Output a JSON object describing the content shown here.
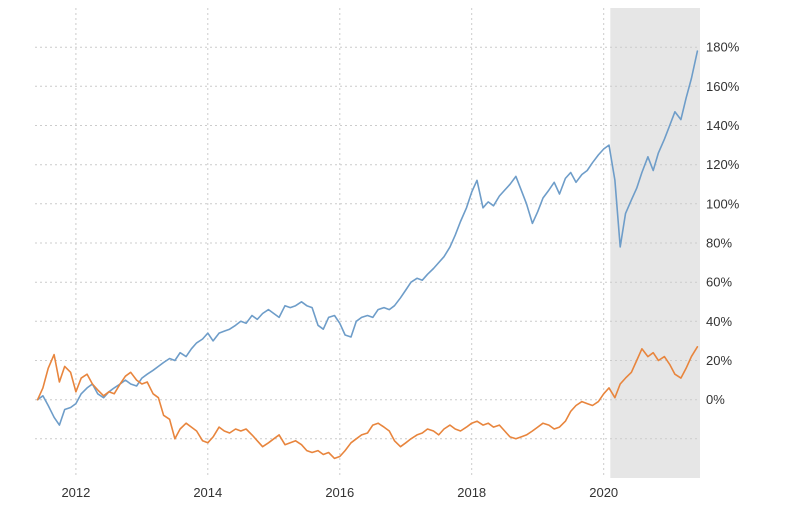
{
  "page": {
    "background": "#ffffff"
  },
  "chart_data": {
    "type": "line",
    "title": "",
    "xlabel": "",
    "ylabel": "",
    "legend": "none",
    "grid": "dashed",
    "grid_color": "#cccccc",
    "xlim": [
      2011.38,
      2021.46
    ],
    "ylim": [
      -40,
      200
    ],
    "y_gridlines": [
      -20,
      0,
      20,
      40,
      60,
      80,
      100,
      120,
      140,
      160,
      180
    ],
    "y_ticks": [
      {
        "value": 0,
        "label": "0%"
      },
      {
        "value": 20,
        "label": "20%"
      },
      {
        "value": 40,
        "label": "40%"
      },
      {
        "value": 60,
        "label": "60%"
      },
      {
        "value": 80,
        "label": "80%"
      },
      {
        "value": 100,
        "label": "100%"
      },
      {
        "value": 120,
        "label": "120%"
      },
      {
        "value": 140,
        "label": "140%"
      },
      {
        "value": 160,
        "label": "160%"
      },
      {
        "value": 180,
        "label": "180%"
      }
    ],
    "x_ticks": [
      {
        "value": 2012,
        "label": "2012"
      },
      {
        "value": 2014,
        "label": "2014"
      },
      {
        "value": 2016,
        "label": "2016"
      },
      {
        "value": 2018,
        "label": "2018"
      },
      {
        "value": 2020,
        "label": "2020"
      }
    ],
    "recession_band": {
      "x_from": 2020.1,
      "x_to": 2021.46,
      "color": "#e6e6e6"
    },
    "x": [
      2011.42,
      2011.5,
      2011.58,
      2011.67,
      2011.75,
      2011.83,
      2011.92,
      2012.0,
      2012.08,
      2012.17,
      2012.25,
      2012.33,
      2012.42,
      2012.5,
      2012.58,
      2012.67,
      2012.75,
      2012.83,
      2012.92,
      2013.0,
      2013.08,
      2013.17,
      2013.25,
      2013.33,
      2013.42,
      2013.5,
      2013.58,
      2013.67,
      2013.75,
      2013.83,
      2013.92,
      2014.0,
      2014.08,
      2014.17,
      2014.25,
      2014.33,
      2014.42,
      2014.5,
      2014.58,
      2014.67,
      2014.75,
      2014.83,
      2014.92,
      2015.0,
      2015.08,
      2015.17,
      2015.25,
      2015.33,
      2015.42,
      2015.5,
      2015.58,
      2015.67,
      2015.75,
      2015.83,
      2015.92,
      2016.0,
      2016.08,
      2016.17,
      2016.25,
      2016.33,
      2016.42,
      2016.5,
      2016.58,
      2016.67,
      2016.75,
      2016.83,
      2016.92,
      2017.0,
      2017.08,
      2017.17,
      2017.25,
      2017.33,
      2017.42,
      2017.5,
      2017.58,
      2017.67,
      2017.75,
      2017.83,
      2017.92,
      2018.0,
      2018.08,
      2018.17,
      2018.25,
      2018.33,
      2018.42,
      2018.5,
      2018.58,
      2018.67,
      2018.75,
      2018.83,
      2018.92,
      2019.0,
      2019.08,
      2019.17,
      2019.25,
      2019.33,
      2019.42,
      2019.5,
      2019.58,
      2019.67,
      2019.75,
      2019.83,
      2019.92,
      2020.0,
      2020.08,
      2020.17,
      2020.25,
      2020.33,
      2020.42,
      2020.5,
      2020.58,
      2020.67,
      2020.75,
      2020.83,
      2020.92,
      2021.0,
      2021.08,
      2021.17,
      2021.25,
      2021.33,
      2021.42
    ],
    "series": [
      {
        "name": "blue",
        "color": "#6e9dc9",
        "values": [
          0,
          2,
          -3,
          -9,
          -13,
          -5,
          -4,
          -2,
          3,
          6,
          8,
          3,
          1,
          4,
          6,
          8,
          10,
          8,
          7,
          11,
          13,
          15,
          17,
          19,
          21,
          20,
          24,
          22,
          26,
          29,
          31,
          34,
          30,
          34,
          35,
          36,
          38,
          40,
          39,
          43,
          41,
          44,
          46,
          44,
          42,
          48,
          47,
          48,
          50,
          48,
          47,
          38,
          36,
          42,
          43,
          39,
          33,
          32,
          40,
          42,
          43,
          42,
          46,
          47,
          46,
          48,
          52,
          56,
          60,
          62,
          61,
          64,
          67,
          70,
          73,
          78,
          84,
          91,
          98,
          106,
          112,
          98,
          101,
          99,
          104,
          107,
          110,
          114,
          107,
          100,
          90,
          96,
          103,
          107,
          111,
          105,
          113,
          116,
          111,
          115,
          117,
          121,
          125,
          128,
          130,
          112,
          78,
          95,
          102,
          108,
          116,
          124,
          117,
          126,
          133,
          140,
          147,
          143,
          154,
          164,
          178
        ]
      },
      {
        "name": "orange",
        "color": "#e8853d",
        "values": [
          0,
          6,
          16,
          23,
          9,
          17,
          14,
          4,
          11,
          13,
          8,
          5,
          2,
          4,
          3,
          8,
          12,
          14,
          10,
          8,
          9,
          3,
          1,
          -8,
          -10,
          -20,
          -15,
          -12,
          -14,
          -16,
          -21,
          -22,
          -19,
          -14,
          -16,
          -17,
          -15,
          -16,
          -15,
          -18,
          -21,
          -24,
          -22,
          -20,
          -18,
          -23,
          -22,
          -21,
          -23,
          -26,
          -27,
          -26,
          -28,
          -27,
          -30,
          -29,
          -26,
          -22,
          -20,
          -18,
          -17,
          -13,
          -12,
          -14,
          -16,
          -21,
          -24,
          -22,
          -20,
          -18,
          -17,
          -15,
          -16,
          -18,
          -15,
          -13,
          -15,
          -16,
          -14,
          -12,
          -11,
          -13,
          -12,
          -14,
          -13,
          -16,
          -19,
          -20,
          -19,
          -18,
          -16,
          -14,
          -12,
          -13,
          -15,
          -14,
          -11,
          -6,
          -3,
          -1,
          -2,
          -3,
          -1,
          3,
          6,
          1,
          8,
          11,
          14,
          20,
          26,
          22,
          24,
          20,
          22,
          18,
          13,
          11,
          16,
          22,
          27
        ]
      }
    ]
  }
}
